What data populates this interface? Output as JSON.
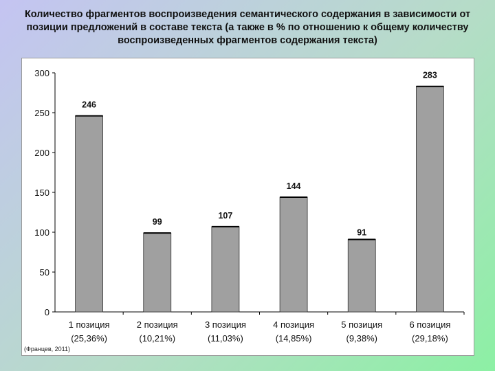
{
  "chart_data": {
    "type": "bar",
    "title": "Количество фрагментов воспроизведения семантического содержания в зависимости от позиции предложений в составе текста (а также в % по отношению к общему количеству воспроизведенных фрагментов содержания текста)",
    "categories": [
      "1 позиция",
      "2 позиция",
      "3 позиция",
      "4 позиция",
      "5 позиция",
      "6 позиция"
    ],
    "percent_labels": [
      "(25,36%)",
      "(10,21%)",
      "(11,03%)",
      "(14,85%)",
      "(9,38%)",
      "(29,18%)"
    ],
    "values": [
      246,
      99,
      107,
      144,
      91,
      283
    ],
    "yticks": [
      0,
      50,
      100,
      150,
      200,
      250,
      300
    ],
    "ylim": [
      0,
      300
    ],
    "grid": false,
    "bar_color": "#a0a0a0"
  },
  "source_note": "(Францев, 2011)"
}
